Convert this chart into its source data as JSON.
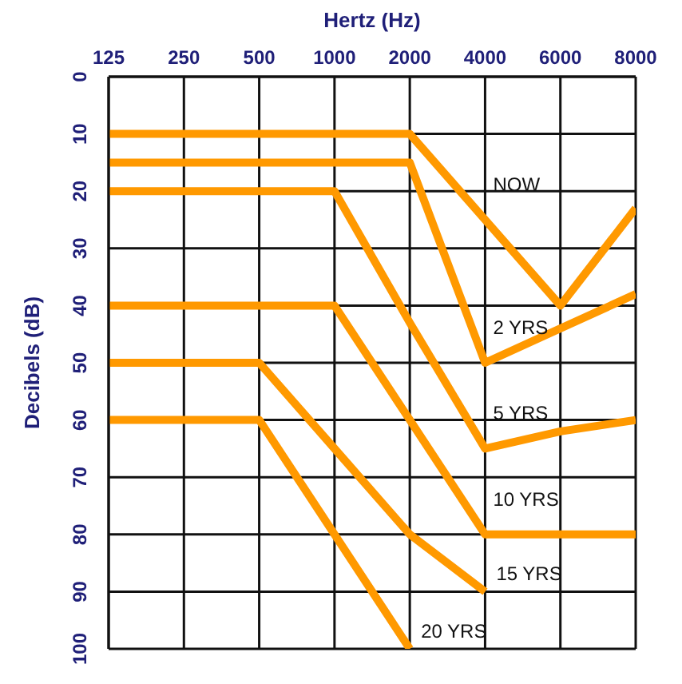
{
  "chart_data": {
    "type": "line",
    "xlabel": "Hertz (Hz)",
    "ylabel": "Decibels (dB)",
    "categories": [
      "125",
      "250",
      "500",
      "1000",
      "2000",
      "4000",
      "6000",
      "8000"
    ],
    "ylim": [
      100,
      0
    ],
    "yticks": [
      0,
      10,
      20,
      30,
      40,
      50,
      60,
      70,
      80,
      90,
      100
    ],
    "grid": true,
    "legend": false,
    "marker": "none",
    "line_style": "solid",
    "series": [
      {
        "name": "NOW",
        "color": "#ff9900",
        "values": [
          10,
          10,
          10,
          10,
          10,
          25,
          40,
          23
        ]
      },
      {
        "name": "2 YRS",
        "color": "#ff9900",
        "values": [
          15,
          15,
          15,
          15,
          15,
          50,
          44,
          38
        ]
      },
      {
        "name": "5 YRS",
        "color": "#ff9900",
        "values": [
          20,
          20,
          20,
          20,
          43,
          65,
          62,
          60
        ]
      },
      {
        "name": "10 YRS",
        "color": "#ff9900",
        "values": [
          40,
          40,
          40,
          40,
          60,
          80,
          80,
          80
        ]
      },
      {
        "name": "15 YRS",
        "color": "#ff9900",
        "values": [
          50,
          50,
          50,
          65,
          80,
          90,
          null,
          null
        ]
      },
      {
        "name": "20 YRS",
        "color": "#ff9900",
        "values": [
          60,
          60,
          60,
          80,
          100,
          null,
          null,
          null
        ]
      }
    ]
  }
}
